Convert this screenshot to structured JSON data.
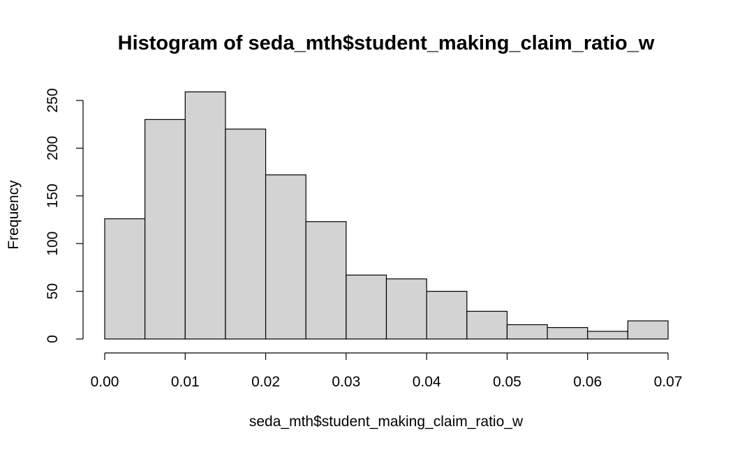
{
  "chart_data": {
    "type": "bar",
    "subtype": "histogram",
    "title": "Histogram of seda_mth$student_making_claim_ratio_w",
    "xlabel": "seda_mth$student_making_claim_ratio_w",
    "ylabel": "Frequency",
    "bins": [
      {
        "start": 0.0,
        "end": 0.005,
        "count": 126
      },
      {
        "start": 0.005,
        "end": 0.01,
        "count": 230
      },
      {
        "start": 0.01,
        "end": 0.015,
        "count": 259
      },
      {
        "start": 0.015,
        "end": 0.02,
        "count": 220
      },
      {
        "start": 0.02,
        "end": 0.025,
        "count": 172
      },
      {
        "start": 0.025,
        "end": 0.03,
        "count": 123
      },
      {
        "start": 0.03,
        "end": 0.035,
        "count": 67
      },
      {
        "start": 0.035,
        "end": 0.04,
        "count": 63
      },
      {
        "start": 0.04,
        "end": 0.045,
        "count": 50
      },
      {
        "start": 0.045,
        "end": 0.05,
        "count": 29
      },
      {
        "start": 0.05,
        "end": 0.055,
        "count": 15
      },
      {
        "start": 0.055,
        "end": 0.06,
        "count": 12
      },
      {
        "start": 0.06,
        "end": 0.065,
        "count": 8
      },
      {
        "start": 0.065,
        "end": 0.07,
        "count": 19
      }
    ],
    "xlim": [
      0,
      0.07
    ],
    "ylim": [
      0,
      260
    ],
    "xticks": [
      "0.00",
      "0.01",
      "0.02",
      "0.03",
      "0.04",
      "0.05",
      "0.06",
      "0.07"
    ],
    "xtick_values": [
      0,
      0.01,
      0.02,
      0.03,
      0.04,
      0.05,
      0.06,
      0.07
    ],
    "yticks": [
      "0",
      "50",
      "100",
      "150",
      "200",
      "250"
    ],
    "ytick_values": [
      0,
      50,
      100,
      150,
      200,
      250
    ],
    "bar_fill": "#d3d3d3",
    "bar_stroke": "#000000",
    "grid": false,
    "legend": "none"
  }
}
